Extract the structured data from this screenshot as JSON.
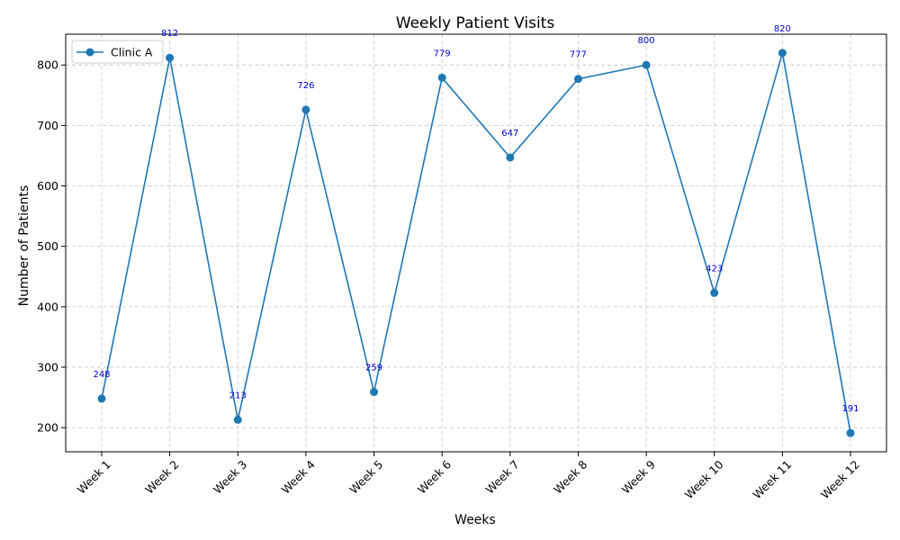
{
  "chart_data": {
    "type": "line",
    "title": "Weekly Patient Visits",
    "xlabel": "Weeks",
    "ylabel": "Number of Patients",
    "categories": [
      "Week 1",
      "Week 2",
      "Week 3",
      "Week 4",
      "Week 5",
      "Week 6",
      "Week 7",
      "Week 8",
      "Week 9",
      "Week 10",
      "Week 11",
      "Week 12"
    ],
    "series": [
      {
        "name": "Clinic A",
        "values": [
          248,
          812,
          213,
          726,
          259,
          779,
          647,
          777,
          800,
          423,
          820,
          191
        ],
        "color": "#1f77b4",
        "marker": "circle"
      }
    ],
    "data_labels": [
      "248",
      "812",
      "213",
      "726",
      "259",
      "779",
      "647",
      "777",
      "800",
      "423",
      "820",
      "191"
    ],
    "data_label_color": "#0000cc",
    "ylim": [
      160,
      851
    ],
    "yticks": [
      200,
      300,
      400,
      500,
      600,
      700,
      800
    ],
    "ytick_labels": [
      "200",
      "300",
      "400",
      "500",
      "600",
      "700",
      "800"
    ],
    "grid": true,
    "legend_position": "upper left"
  }
}
